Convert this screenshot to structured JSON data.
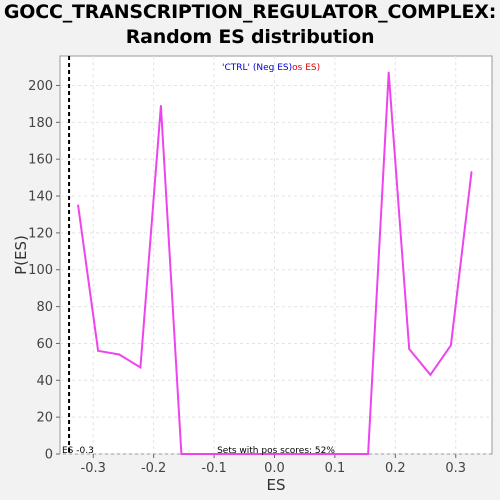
{
  "chart_data": {
    "type": "line",
    "title_line1": "GOCC_TRANSCRIPTION_REGULATOR_COMPLEX:",
    "title_line2": "Random ES distribution",
    "xlabel": "ES",
    "ylabel": "P(ES)",
    "xlim": [
      -0.355,
      0.36
    ],
    "ylim": [
      0,
      216
    ],
    "xticks": [
      -0.3,
      -0.2,
      -0.1,
      0.0,
      0.1,
      0.2,
      0.3
    ],
    "xtick_labels": [
      "-0.3",
      "-0.2",
      "-0.1",
      "0.0",
      "0.1",
      "0.2",
      "0.3"
    ],
    "yticks": [
      0,
      20,
      40,
      60,
      80,
      100,
      120,
      140,
      160,
      180,
      200
    ],
    "ytick_labels": [
      "0",
      "20",
      "40",
      "60",
      "80",
      "100",
      "120",
      "140",
      "160",
      "180",
      "200"
    ],
    "grid": true,
    "legend": {
      "prefix": "'CTRL' (",
      "neg": "Neg ES)",
      "pos": "os ES)"
    },
    "series_color": "#ee44ee",
    "x": [
      -0.325,
      -0.292,
      -0.257,
      -0.222,
      -0.188,
      -0.154,
      -0.12,
      -0.086,
      -0.051,
      -0.016,
      0.018,
      0.053,
      0.087,
      0.121,
      0.155,
      0.189,
      0.223,
      0.258,
      0.292,
      0.326
    ],
    "y": [
      135,
      56,
      54,
      47,
      189,
      0,
      0,
      0,
      0,
      0,
      0,
      0,
      0,
      0,
      0,
      207,
      57,
      43,
      59,
      153
    ],
    "es_value": -0.34,
    "es_label": "ES -0.3",
    "annotation": "Sets with pos scores: 52%"
  }
}
